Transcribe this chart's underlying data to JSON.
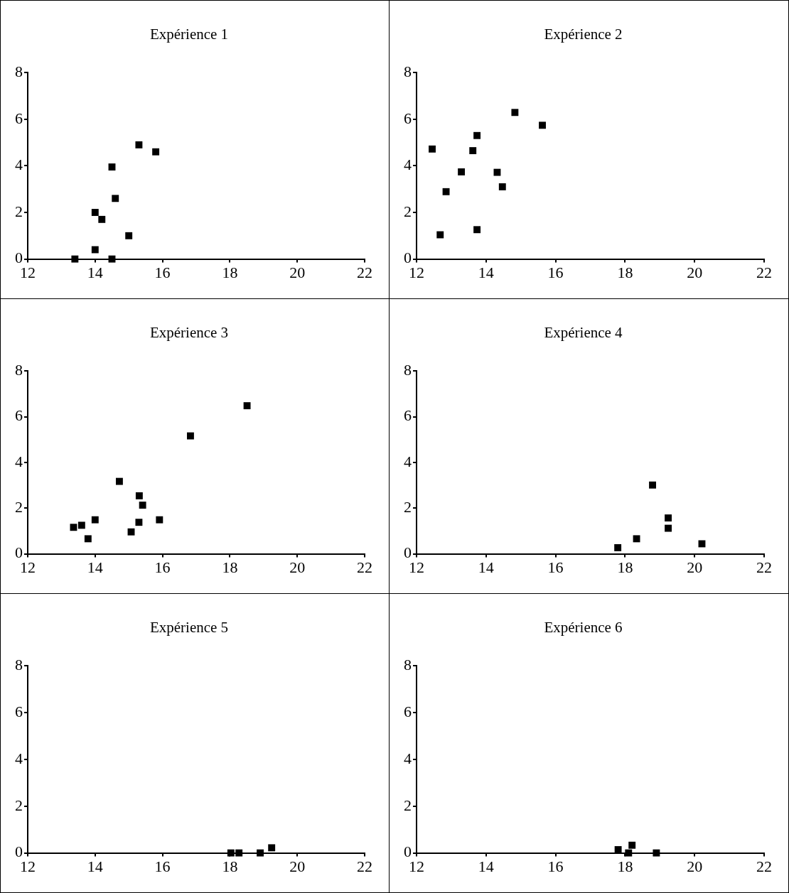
{
  "chart_data": [
    {
      "type": "scatter",
      "title": "Expérience 1",
      "marker": "square",
      "color": "#000000",
      "xlim": [
        12,
        22
      ],
      "xticks": [
        12,
        14,
        16,
        18,
        20,
        22
      ],
      "ylim": [
        0,
        8
      ],
      "yticks": [
        0,
        2,
        4,
        6,
        8
      ],
      "x": [
        13.4,
        14.0,
        14.0,
        14.2,
        14.5,
        14.6,
        14.5,
        15.0,
        15.3,
        15.8
      ],
      "values": [
        0,
        0.4,
        2.0,
        1.7,
        3.95,
        2.6,
        0,
        1.0,
        4.9,
        4.6
      ]
    },
    {
      "type": "scatter",
      "title": "Expérience 2",
      "marker": "square",
      "color": "#000000",
      "xlim": [
        12,
        22
      ],
      "xticks": [
        12,
        14,
        16,
        18,
        20,
        22
      ],
      "ylim": [
        0,
        8
      ],
      "yticks": [
        0,
        2,
        4,
        6,
        8
      ],
      "x": [
        12.45,
        12.68,
        12.85,
        13.29,
        13.62,
        13.74,
        13.74,
        14.32,
        14.47,
        14.83,
        15.62
      ],
      "values": [
        4.72,
        1.04,
        2.89,
        3.74,
        4.65,
        5.3,
        1.26,
        3.72,
        3.1,
        6.29,
        5.74
      ]
    },
    {
      "type": "scatter",
      "title": "Expérience 3",
      "marker": "square",
      "color": "#000000",
      "xlim": [
        12,
        22
      ],
      "xticks": [
        12,
        14,
        16,
        18,
        20,
        22
      ],
      "ylim": [
        0,
        8
      ],
      "yticks": [
        0,
        2,
        4,
        6,
        8
      ],
      "x": [
        13.36,
        13.6,
        13.79,
        14.0,
        14.72,
        15.07,
        15.3,
        15.31,
        15.41,
        15.91,
        16.83,
        18.51
      ],
      "values": [
        1.16,
        1.25,
        0.66,
        1.49,
        3.17,
        0.96,
        1.38,
        2.54,
        2.13,
        1.49,
        5.16,
        6.48
      ]
    },
    {
      "type": "scatter",
      "title": "Expérience 4",
      "marker": "square",
      "color": "#000000",
      "xlim": [
        12,
        22
      ],
      "xticks": [
        12,
        14,
        16,
        18,
        20,
        22
      ],
      "ylim": [
        0,
        8
      ],
      "yticks": [
        0,
        2,
        4,
        6,
        8
      ],
      "x": [
        17.79,
        18.33,
        18.79,
        19.24,
        19.24,
        20.21
      ],
      "values": [
        0.27,
        0.66,
        3.01,
        1.57,
        1.12,
        0.44
      ]
    },
    {
      "type": "scatter",
      "title": "Expérience 5",
      "marker": "square",
      "color": "#000000",
      "xlim": [
        12,
        22
      ],
      "xticks": [
        12,
        14,
        16,
        18,
        20,
        22
      ],
      "ylim": [
        0,
        8
      ],
      "yticks": [
        0,
        2,
        4,
        6,
        8
      ],
      "x": [
        18.03,
        18.27,
        18.9,
        19.24
      ],
      "values": [
        0,
        0,
        0,
        0.22
      ]
    },
    {
      "type": "scatter",
      "title": "Expérience 6",
      "marker": "square",
      "color": "#000000",
      "xlim": [
        12,
        22
      ],
      "xticks": [
        12,
        14,
        16,
        18,
        20,
        22
      ],
      "ylim": [
        0,
        8
      ],
      "yticks": [
        0,
        2,
        4,
        6,
        8
      ],
      "x": [
        17.8,
        18.1,
        18.2,
        18.9
      ],
      "values": [
        0.14,
        0,
        0.33,
        0
      ]
    }
  ]
}
